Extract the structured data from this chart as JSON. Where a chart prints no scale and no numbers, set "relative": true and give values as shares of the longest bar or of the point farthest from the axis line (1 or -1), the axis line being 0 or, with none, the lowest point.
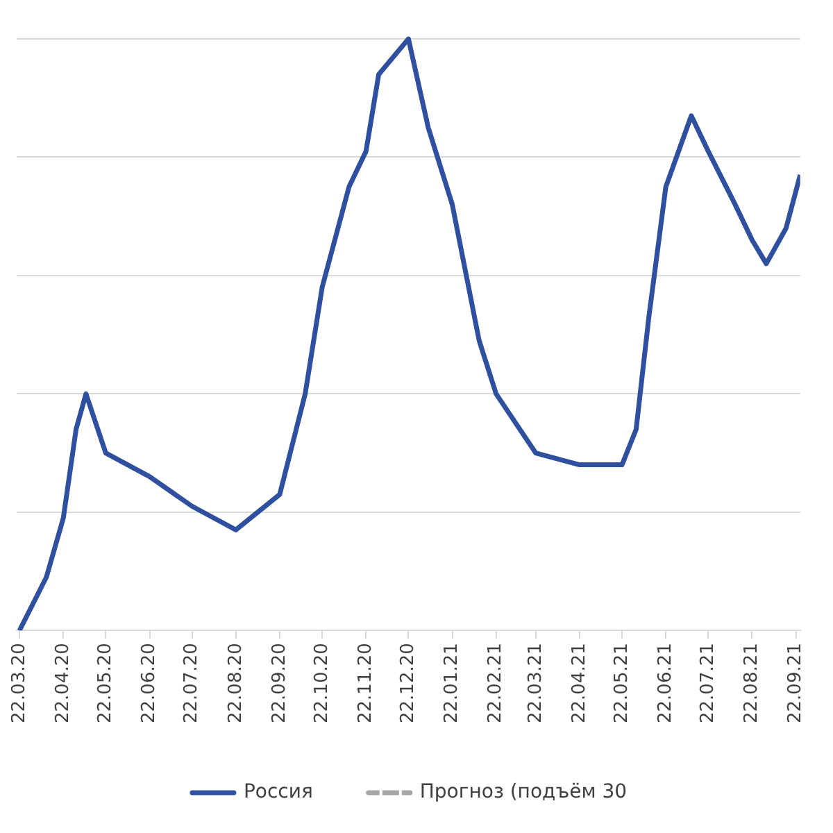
{
  "chart_data": {
    "type": "line",
    "relative": true,
    "grid": "y",
    "legend": "bottom",
    "marker": "none",
    "x": [
      "2020-03-22",
      "2020-04-10",
      "2020-04-22",
      "2020-05-01",
      "2020-05-08",
      "2020-05-22",
      "2020-06-22",
      "2020-07-22",
      "2020-08-22",
      "2020-09-22",
      "2020-10-10",
      "2020-10-22",
      "2020-11-10",
      "2020-11-22",
      "2020-12-01",
      "2020-12-22",
      "2021-01-05",
      "2021-01-22",
      "2021-02-10",
      "2021-02-22",
      "2021-03-22",
      "2021-04-22",
      "2021-05-22",
      "2021-06-01",
      "2021-06-10",
      "2021-06-22",
      "2021-07-10",
      "2021-07-22",
      "2021-08-10",
      "2021-08-22",
      "2021-09-01",
      "2021-09-15",
      "2021-09-25"
    ],
    "xlim": [
      "2020-03-20",
      "2021-09-25"
    ],
    "xticks": [
      {
        "value": "2020-03-22",
        "label": "22.03.20"
      },
      {
        "value": "2020-04-22",
        "label": "22.04.20"
      },
      {
        "value": "2020-05-22",
        "label": "22.05.20"
      },
      {
        "value": "2020-06-22",
        "label": "22.06.20"
      },
      {
        "value": "2020-07-22",
        "label": "22.07.20"
      },
      {
        "value": "2020-08-22",
        "label": "22.08.20"
      },
      {
        "value": "2020-09-22",
        "label": "22.09.20"
      },
      {
        "value": "2020-10-22",
        "label": "22.10.20"
      },
      {
        "value": "2020-11-22",
        "label": "22.11.20"
      },
      {
        "value": "2020-12-22",
        "label": "22.12.20"
      },
      {
        "value": "2021-01-22",
        "label": "22.01.21"
      },
      {
        "value": "2021-02-22",
        "label": "22.02.21"
      },
      {
        "value": "2021-03-22",
        "label": "22.03.21"
      },
      {
        "value": "2021-04-22",
        "label": "22.04.21"
      },
      {
        "value": "2021-05-22",
        "label": "22.05.21"
      },
      {
        "value": "2021-06-22",
        "label": "22.06.21"
      },
      {
        "value": "2021-07-22",
        "label": "22.07.21"
      },
      {
        "value": "2021-08-22",
        "label": "22.08.21"
      },
      {
        "value": "2021-09-22",
        "label": "22.09.21"
      }
    ],
    "series": [
      {
        "name": "Россия",
        "color": "#2f4f9f",
        "line_style": "solid",
        "values": [
          0,
          0.09,
          0.19,
          0.34,
          0.4,
          0.3,
          0.26,
          0.21,
          0.17,
          0.23,
          0.4,
          0.58,
          0.75,
          0.81,
          0.94,
          1,
          0.85,
          0.72,
          0.49,
          0.4,
          0.3,
          0.28,
          0.28,
          0.34,
          0.53,
          0.75,
          0.87,
          0.81,
          0.72,
          0.66,
          0.62,
          0.68,
          0.77
        ]
      },
      {
        "name": "Прогноз (подъём 30",
        "color": "#a6a6a6",
        "line_style": "dashed",
        "values": [
          null,
          null,
          null,
          null,
          null,
          null,
          null,
          null,
          null,
          null,
          null,
          null,
          null,
          null,
          null,
          null,
          null,
          null,
          null,
          null,
          null,
          null,
          null,
          null,
          null,
          null,
          null,
          null,
          null,
          null,
          null,
          null,
          null
        ]
      }
    ]
  }
}
